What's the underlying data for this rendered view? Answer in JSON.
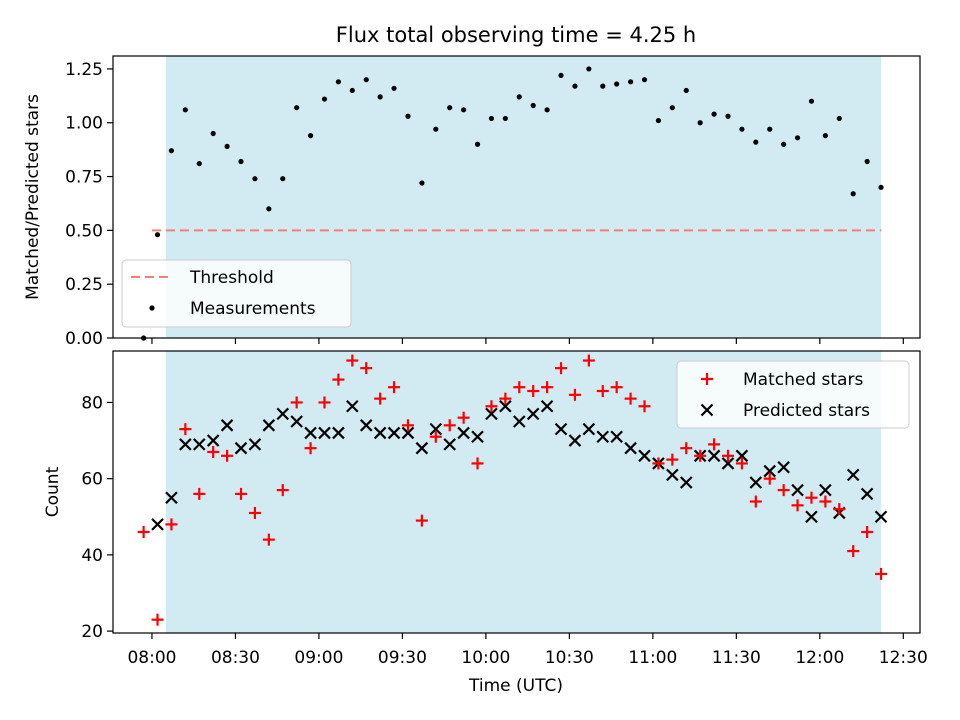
{
  "chart_data": [
    {
      "type": "scatter",
      "title": "Flux total observing time = 4.25 h",
      "ylabel": "Matched/Predicted stars",
      "xlabel": "",
      "ylim": [
        0,
        1.31
      ],
      "yticks": [
        0.0,
        0.25,
        0.5,
        0.75,
        1.0,
        1.25
      ],
      "ytick_labels": [
        "0.00",
        "0.25",
        "0.50",
        "0.75",
        "1.00",
        "1.25"
      ],
      "observing_window": {
        "start": "08:05",
        "end": "12:22",
        "color": "#add8e6"
      },
      "threshold": {
        "name": "Threshold",
        "y": 0.5,
        "x_start": "08:00",
        "x_end": "12:22",
        "color": "#f08080",
        "style": "dashed"
      },
      "series": [
        {
          "name": "Measurements",
          "color": "#000000",
          "marker": "dot",
          "x": [
            "07:57",
            "08:02",
            "08:07",
            "08:12",
            "08:17",
            "08:22",
            "08:27",
            "08:32",
            "08:37",
            "08:42",
            "08:47",
            "08:52",
            "08:57",
            "09:02",
            "09:07",
            "09:12",
            "09:17",
            "09:22",
            "09:27",
            "09:32",
            "09:37",
            "09:42",
            "09:47",
            "09:52",
            "09:57",
            "10:02",
            "10:07",
            "10:12",
            "10:17",
            "10:22",
            "10:27",
            "10:32",
            "10:37",
            "10:42",
            "10:47",
            "10:52",
            "10:57",
            "11:02",
            "11:07",
            "11:12",
            "11:17",
            "11:22",
            "11:27",
            "11:32",
            "11:37",
            "11:42",
            "11:47",
            "11:52",
            "11:57",
            "12:02",
            "12:07",
            "12:12",
            "12:17",
            "12:22"
          ],
          "y": [
            0.0,
            0.48,
            0.87,
            1.06,
            0.81,
            0.95,
            0.89,
            0.82,
            0.74,
            0.6,
            0.74,
            1.07,
            0.94,
            1.11,
            1.19,
            1.15,
            1.2,
            1.12,
            1.16,
            1.03,
            0.72,
            0.97,
            1.07,
            1.06,
            0.9,
            1.02,
            1.02,
            1.12,
            1.08,
            1.06,
            1.22,
            1.17,
            1.25,
            1.17,
            1.18,
            1.19,
            1.2,
            1.01,
            1.07,
            1.15,
            1.0,
            1.04,
            1.03,
            0.97,
            0.91,
            0.97,
            0.9,
            0.93,
            1.1,
            0.94,
            1.02,
            0.67,
            0.82,
            0.7
          ]
        }
      ],
      "legend": {
        "placement": "lower-left",
        "entries": [
          "Threshold",
          "Measurements"
        ]
      }
    },
    {
      "type": "scatter",
      "title": "",
      "ylabel": "Count",
      "xlabel": "Time (UTC)",
      "ylim": [
        19.5,
        93.5
      ],
      "yticks": [
        20,
        40,
        60,
        80
      ],
      "ytick_labels": [
        "20",
        "40",
        "60",
        "80"
      ],
      "xlim": [
        "07:46",
        "12:36"
      ],
      "xticks": [
        "08:00",
        "08:30",
        "09:00",
        "09:30",
        "10:00",
        "10:30",
        "11:00",
        "11:30",
        "12:00",
        "12:30"
      ],
      "observing_window": {
        "start": "08:05",
        "end": "12:22",
        "color": "#add8e6"
      },
      "series": [
        {
          "name": "Matched stars",
          "color": "#ff0000",
          "marker": "plus",
          "x": [
            "07:57",
            "08:02",
            "08:07",
            "08:12",
            "08:17",
            "08:22",
            "08:27",
            "08:32",
            "08:37",
            "08:42",
            "08:47",
            "08:52",
            "08:57",
            "09:02",
            "09:07",
            "09:12",
            "09:17",
            "09:22",
            "09:27",
            "09:32",
            "09:37",
            "09:42",
            "09:47",
            "09:52",
            "09:57",
            "10:02",
            "10:07",
            "10:12",
            "10:17",
            "10:22",
            "10:27",
            "10:32",
            "10:37",
            "10:42",
            "10:47",
            "10:52",
            "10:57",
            "11:02",
            "11:07",
            "11:12",
            "11:17",
            "11:22",
            "11:27",
            "11:32",
            "11:37",
            "11:42",
            "11:47",
            "11:52",
            "11:57",
            "12:02",
            "12:07",
            "12:12",
            "12:17",
            "12:22"
          ],
          "y": [
            46,
            23,
            48,
            73,
            56,
            67,
            66,
            56,
            51,
            44,
            57,
            80,
            68,
            80,
            86,
            91,
            89,
            81,
            84,
            74,
            49,
            71,
            74,
            76,
            64,
            79,
            81,
            84,
            83,
            84,
            89,
            82,
            91,
            83,
            84,
            81,
            79,
            64,
            65,
            68,
            66,
            69,
            66,
            64,
            54,
            60,
            57,
            53,
            55,
            54,
            52,
            41,
            46,
            35
          ]
        },
        {
          "name": "Predicted stars",
          "color": "#000000",
          "marker": "x",
          "x": [
            "08:02",
            "08:07",
            "08:12",
            "08:17",
            "08:22",
            "08:27",
            "08:32",
            "08:37",
            "08:42",
            "08:47",
            "08:52",
            "08:57",
            "09:02",
            "09:07",
            "09:12",
            "09:17",
            "09:22",
            "09:27",
            "09:32",
            "09:37",
            "09:42",
            "09:47",
            "09:52",
            "09:57",
            "10:02",
            "10:07",
            "10:12",
            "10:17",
            "10:22",
            "10:27",
            "10:32",
            "10:37",
            "10:42",
            "10:47",
            "10:52",
            "10:57",
            "11:02",
            "11:07",
            "11:12",
            "11:17",
            "11:22",
            "11:27",
            "11:32",
            "11:37",
            "11:42",
            "11:47",
            "11:52",
            "11:57",
            "12:02",
            "12:07",
            "12:12",
            "12:17",
            "12:22"
          ],
          "y": [
            48,
            55,
            69,
            69,
            70,
            74,
            68,
            69,
            74,
            77,
            75,
            72,
            72,
            72,
            79,
            74,
            72,
            72,
            72,
            68,
            73,
            69,
            72,
            71,
            77,
            79,
            75,
            77,
            79,
            73,
            70,
            73,
            71,
            71,
            68,
            66,
            64,
            61,
            59,
            66,
            66,
            64,
            66,
            59,
            62,
            63,
            57,
            50,
            57,
            51,
            61,
            56,
            50
          ]
        }
      ],
      "legend": {
        "placement": "upper-right",
        "entries": [
          "Matched stars",
          "Predicted stars"
        ]
      }
    }
  ]
}
